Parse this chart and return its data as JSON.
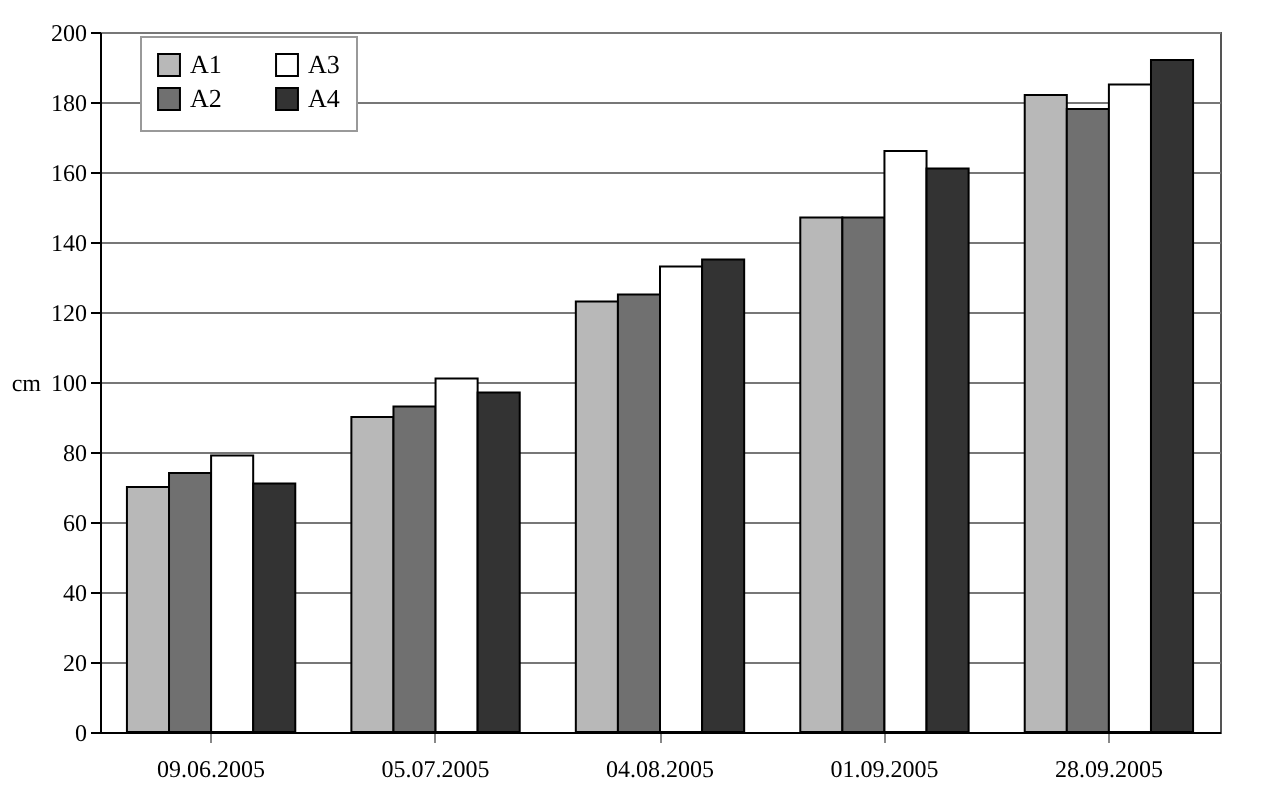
{
  "chart_data": {
    "type": "bar",
    "ylabel": "cm",
    "categories": [
      "09.06.2005",
      "05.07.2005",
      "04.08.2005",
      "01.09.2005",
      "28.09.2005"
    ],
    "series": [
      {
        "name": "A1",
        "color": "#b8b8b8",
        "values": [
          70,
          90,
          123,
          147,
          182
        ]
      },
      {
        "name": "A2",
        "color": "#707070",
        "values": [
          74,
          93,
          125,
          147,
          178
        ]
      },
      {
        "name": "A3",
        "color": "#ffffff",
        "values": [
          79,
          101,
          133,
          166,
          185
        ]
      },
      {
        "name": "A4",
        "color": "#333333",
        "values": [
          71,
          97,
          135,
          161,
          192
        ]
      }
    ],
    "ylim": [
      0,
      200
    ],
    "yticks": [
      0,
      20,
      40,
      60,
      80,
      100,
      120,
      140,
      160,
      180,
      200
    ],
    "grid": "y",
    "legend": "top left"
  }
}
